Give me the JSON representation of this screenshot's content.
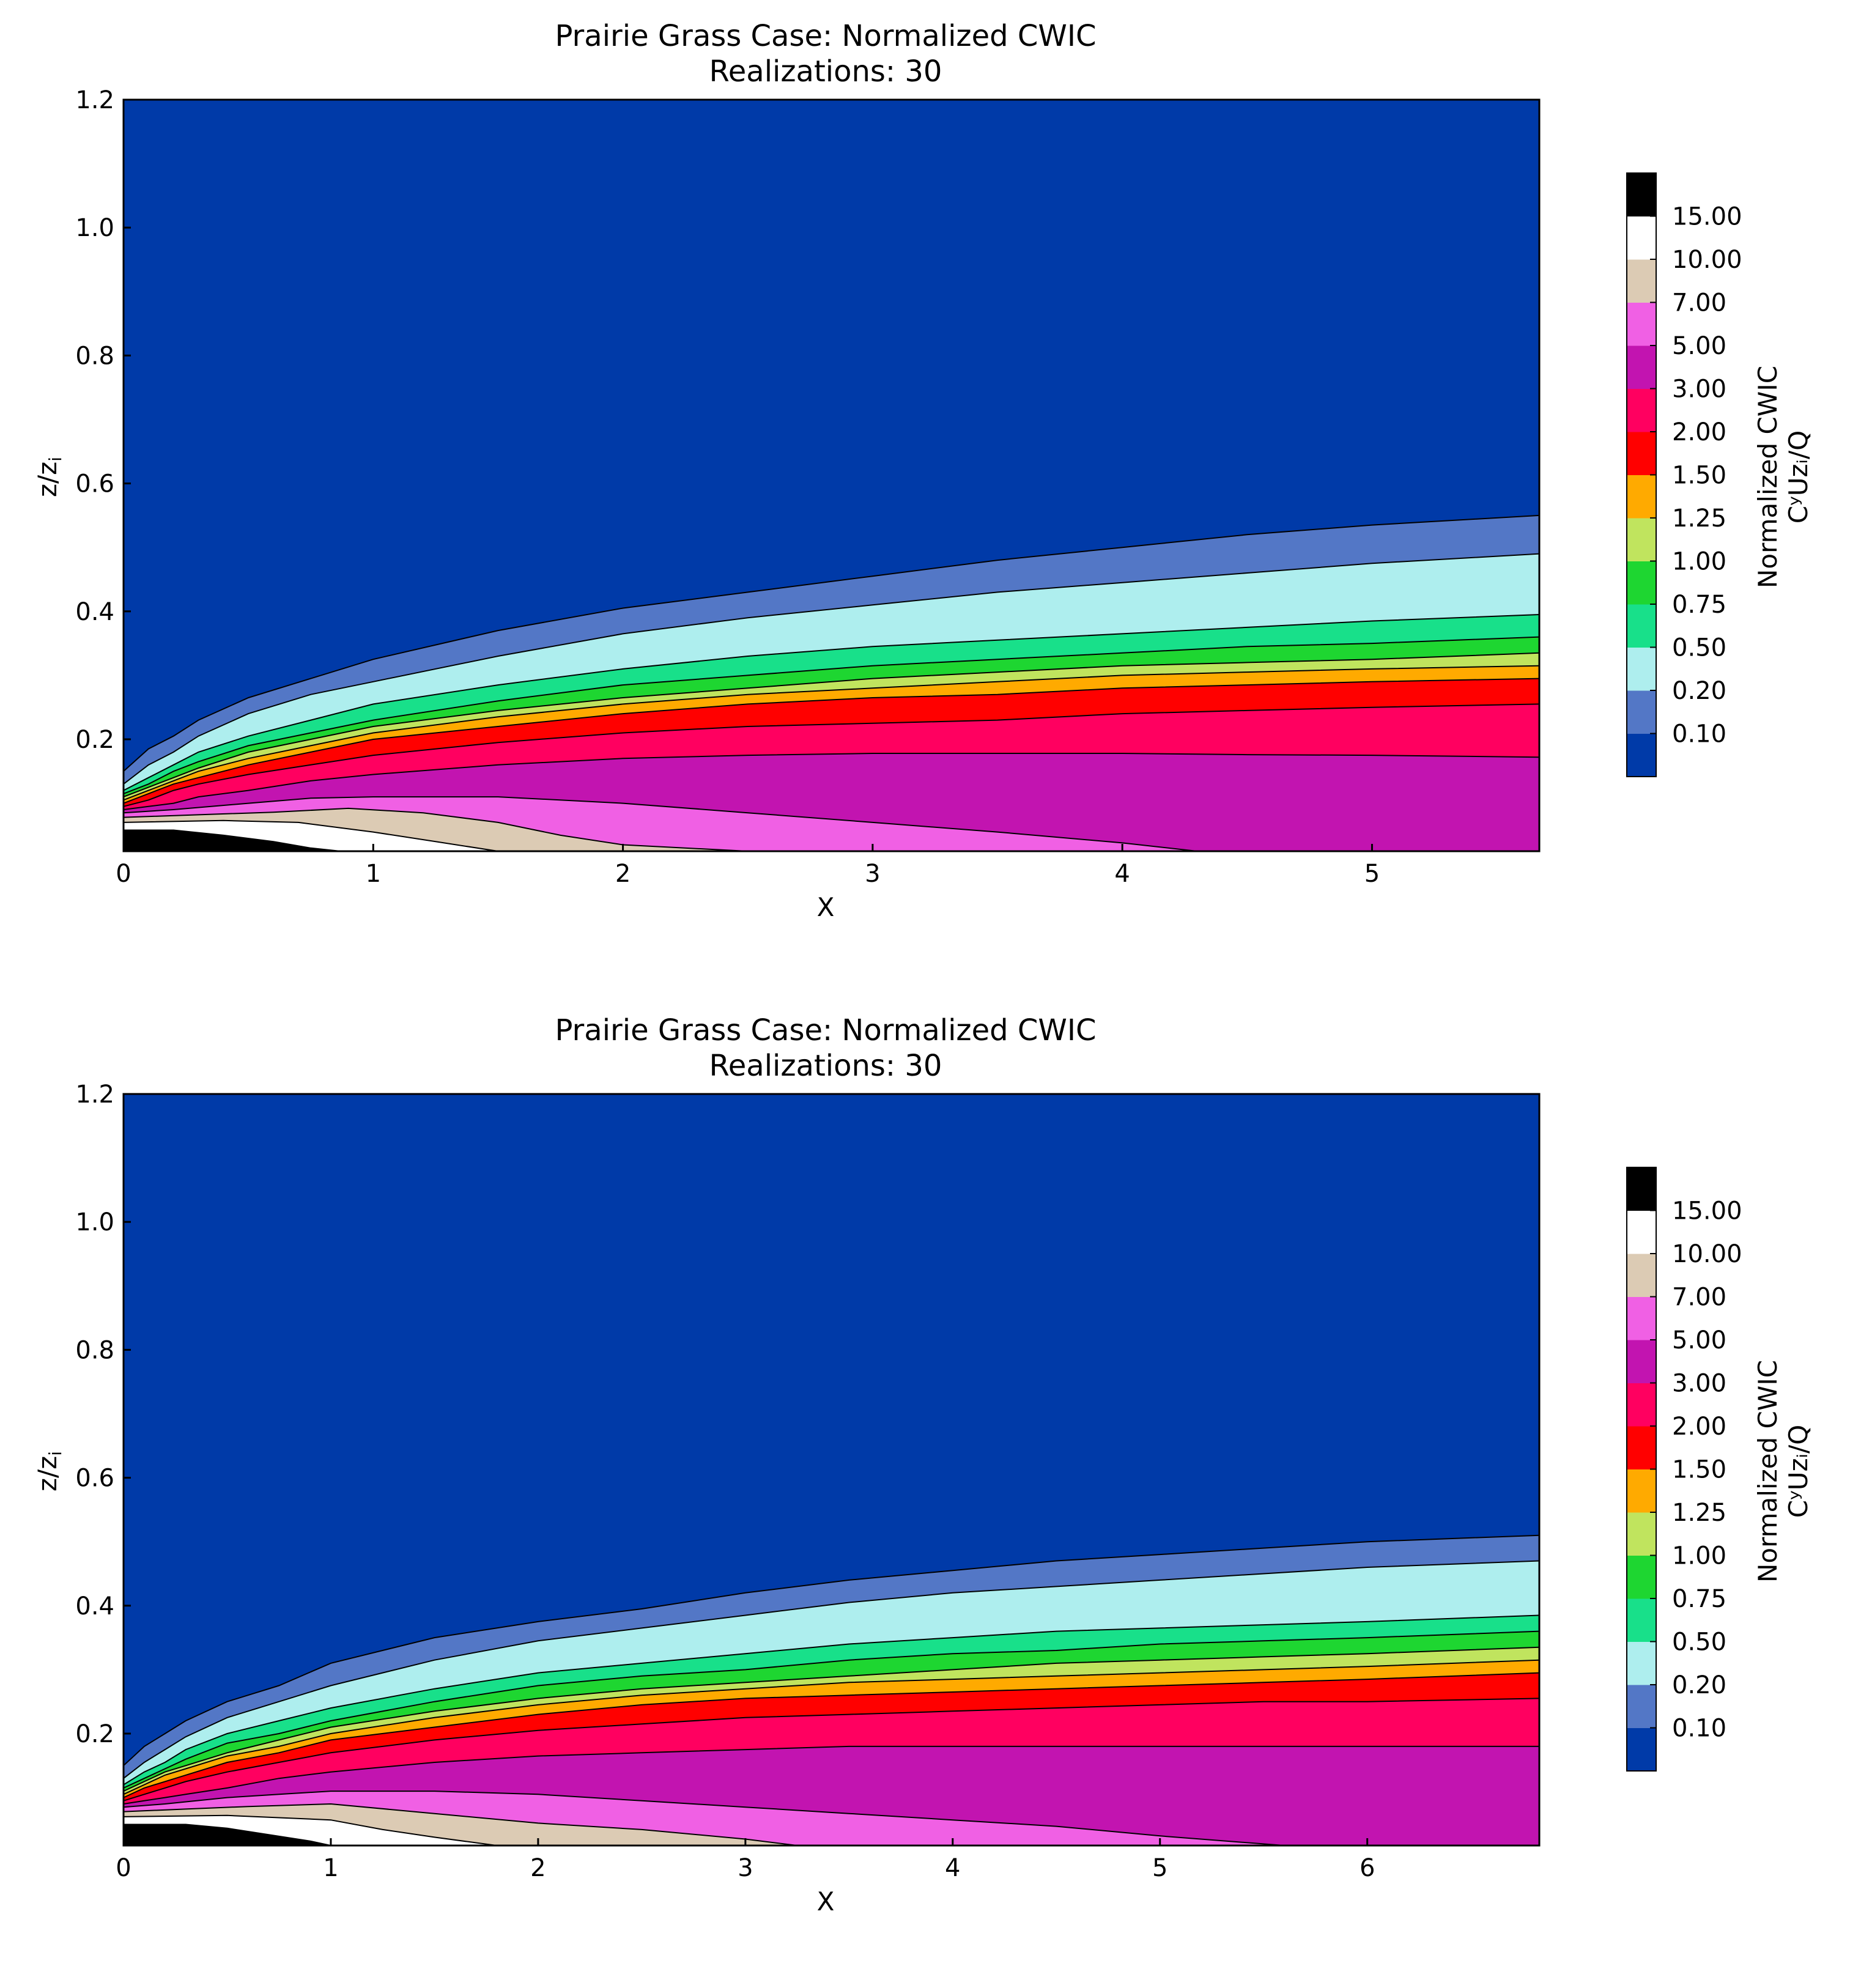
{
  "chart_data": [
    {
      "type": "contour",
      "title": "Prairie Grass Case: Normalized CWIC",
      "subtitle": "Realizations: 30",
      "xlabel": "X",
      "ylabel": "z/zᵢ",
      "ylabel_main": "z/z",
      "ylabel_sub": "i",
      "xlim": [
        0,
        5.67
      ],
      "ylim": [
        0.025,
        1.2
      ],
      "xticks": [
        0,
        1,
        2,
        3,
        4,
        5
      ],
      "yticks": [
        0.2,
        0.4,
        0.6,
        0.8,
        1.0,
        1.2
      ],
      "ytick_labels": [
        "0.2",
        "0.4",
        "0.6",
        "0.8",
        "1.0",
        "1.2"
      ],
      "colorbar": {
        "title_line1": "Normalized CWIC",
        "title_line2": "CʸUzᵢ/Q",
        "levels": [
          "0.10",
          "0.20",
          "0.50",
          "0.75",
          "1.00",
          "1.25",
          "1.50",
          "2.00",
          "3.00",
          "5.00",
          "7.00",
          "10.00",
          "15.00"
        ],
        "colors": [
          "#003aa8",
          "#5377c6",
          "#aeeeee",
          "#18e08a",
          "#1ed631",
          "#c0e45e",
          "#ffaa00",
          "#ff0000",
          "#ff0060",
          "#c214b0",
          "#f060e4",
          "#dccbb4",
          "#ffffff",
          "#000000"
        ]
      },
      "contour_boundaries": [
        {
          "level": "0.10",
          "x": [
            0,
            0.1,
            0.2,
            0.3,
            0.5,
            0.75,
            1.0,
            1.5,
            2.0,
            2.5,
            3.0,
            3.5,
            4.0,
            4.5,
            5.0,
            5.67
          ],
          "y": [
            0.15,
            0.185,
            0.205,
            0.23,
            0.265,
            0.295,
            0.325,
            0.37,
            0.405,
            0.43,
            0.455,
            0.48,
            0.5,
            0.52,
            0.535,
            0.55
          ]
        },
        {
          "level": "0.20",
          "x": [
            0,
            0.1,
            0.2,
            0.3,
            0.5,
            0.75,
            1.0,
            1.5,
            2.0,
            2.5,
            3.0,
            3.5,
            4.0,
            4.5,
            5.0,
            5.67
          ],
          "y": [
            0.13,
            0.16,
            0.18,
            0.205,
            0.24,
            0.27,
            0.29,
            0.33,
            0.365,
            0.39,
            0.41,
            0.43,
            0.445,
            0.46,
            0.475,
            0.49
          ]
        },
        {
          "level": "0.50",
          "x": [
            0,
            0.1,
            0.2,
            0.3,
            0.5,
            0.75,
            1.0,
            1.5,
            2.0,
            2.5,
            3.0,
            3.5,
            4.0,
            4.5,
            5.0,
            5.67
          ],
          "y": [
            0.12,
            0.14,
            0.16,
            0.18,
            0.205,
            0.23,
            0.255,
            0.285,
            0.31,
            0.33,
            0.345,
            0.355,
            0.365,
            0.375,
            0.385,
            0.395
          ]
        },
        {
          "level": "0.75",
          "x": [
            0,
            0.1,
            0.2,
            0.3,
            0.5,
            0.75,
            1.0,
            1.5,
            2.0,
            2.5,
            3.0,
            3.5,
            4.0,
            4.5,
            5.0,
            5.67
          ],
          "y": [
            0.115,
            0.13,
            0.15,
            0.165,
            0.19,
            0.21,
            0.23,
            0.26,
            0.285,
            0.3,
            0.315,
            0.325,
            0.335,
            0.345,
            0.35,
            0.36
          ]
        },
        {
          "level": "1.00",
          "x": [
            0,
            0.1,
            0.2,
            0.3,
            0.5,
            0.75,
            1.0,
            1.5,
            2.0,
            2.5,
            3.0,
            3.5,
            4.0,
            4.5,
            5.0,
            5.67
          ],
          "y": [
            0.11,
            0.125,
            0.14,
            0.155,
            0.18,
            0.2,
            0.22,
            0.245,
            0.265,
            0.28,
            0.295,
            0.305,
            0.315,
            0.32,
            0.325,
            0.335
          ]
        },
        {
          "level": "1.25",
          "x": [
            0,
            0.1,
            0.2,
            0.3,
            0.5,
            0.75,
            1.0,
            1.5,
            2.0,
            2.5,
            3.0,
            3.5,
            4.0,
            4.5,
            5.0,
            5.67
          ],
          "y": [
            0.105,
            0.12,
            0.135,
            0.15,
            0.17,
            0.19,
            0.21,
            0.235,
            0.255,
            0.27,
            0.28,
            0.29,
            0.3,
            0.305,
            0.31,
            0.315
          ]
        },
        {
          "level": "1.50",
          "x": [
            0,
            0.1,
            0.2,
            0.3,
            0.5,
            0.75,
            1.0,
            1.5,
            2.0,
            2.5,
            3.0,
            3.5,
            4.0,
            4.5,
            5.0,
            5.67
          ],
          "y": [
            0.1,
            0.115,
            0.13,
            0.14,
            0.16,
            0.18,
            0.2,
            0.22,
            0.24,
            0.255,
            0.265,
            0.27,
            0.28,
            0.285,
            0.29,
            0.295
          ]
        },
        {
          "level": "2.00",
          "x": [
            0,
            0.1,
            0.2,
            0.3,
            0.5,
            0.75,
            1.0,
            1.5,
            2.0,
            2.5,
            3.0,
            3.5,
            4.0,
            4.5,
            5.0,
            5.67
          ],
          "y": [
            0.095,
            0.105,
            0.12,
            0.13,
            0.145,
            0.16,
            0.175,
            0.195,
            0.21,
            0.22,
            0.225,
            0.23,
            0.24,
            0.245,
            0.25,
            0.255
          ]
        },
        {
          "level": "3.00",
          "x": [
            0,
            0.1,
            0.2,
            0.3,
            0.5,
            0.75,
            1.0,
            1.5,
            2.0,
            2.5,
            3.0,
            3.5,
            4.0,
            4.5,
            5.0,
            5.67
          ],
          "y": [
            0.09,
            0.095,
            0.1,
            0.11,
            0.12,
            0.135,
            0.145,
            0.16,
            0.17,
            0.175,
            0.178,
            0.178,
            0.178,
            0.176,
            0.175,
            0.172
          ]
        },
        {
          "level": "5.00",
          "x": [
            0,
            0.2,
            0.5,
            0.75,
            1.0,
            1.5,
            2.0,
            2.5,
            3.0,
            3.5,
            4.0,
            4.3,
            5.67
          ],
          "y": [
            0.085,
            0.09,
            0.1,
            0.108,
            0.11,
            0.11,
            0.1,
            0.085,
            0.07,
            0.055,
            0.038,
            0.025,
            0.025
          ]
        },
        {
          "level": "7.00",
          "x": [
            0,
            0.3,
            0.6,
            0.9,
            1.2,
            1.5,
            1.75,
            2.0,
            2.5,
            5.67
          ],
          "y": [
            0.078,
            0.082,
            0.086,
            0.092,
            0.085,
            0.07,
            0.05,
            0.035,
            0.025,
            0.025
          ]
        },
        {
          "level": "10.00",
          "x": [
            0,
            0.4,
            0.7,
            1.0,
            1.25,
            1.5,
            5.67
          ],
          "y": [
            0.07,
            0.073,
            0.07,
            0.055,
            0.04,
            0.025,
            0.025
          ]
        },
        {
          "level": "15.00",
          "x": [
            0,
            0.2,
            0.4,
            0.6,
            0.75,
            0.87,
            5.67
          ],
          "y": [
            0.058,
            0.058,
            0.05,
            0.04,
            0.03,
            0.025,
            0.025
          ]
        }
      ]
    },
    {
      "type": "contour",
      "title": "Prairie Grass Case: Normalized CWIC",
      "subtitle": "Realizations: 30",
      "xlabel": "X",
      "ylabel": "z/zᵢ",
      "ylabel_main": "z/z",
      "ylabel_sub": "i",
      "xlim": [
        0,
        6.83
      ],
      "ylim": [
        0.025,
        1.2
      ],
      "xticks": [
        0,
        1,
        2,
        3,
        4,
        5,
        6
      ],
      "yticks": [
        0.2,
        0.4,
        0.6,
        0.8,
        1.0,
        1.2
      ],
      "ytick_labels": [
        "0.2",
        "0.4",
        "0.6",
        "0.8",
        "1.0",
        "1.2"
      ],
      "colorbar": {
        "title_line1": "Normalized CWIC",
        "title_line2": "CʸUzᵢ/Q",
        "levels": [
          "0.10",
          "0.20",
          "0.50",
          "0.75",
          "1.00",
          "1.25",
          "1.50",
          "2.00",
          "3.00",
          "5.00",
          "7.00",
          "10.00",
          "15.00"
        ],
        "colors": [
          "#003aa8",
          "#5377c6",
          "#aeeeee",
          "#18e08a",
          "#1ed631",
          "#c0e45e",
          "#ffaa00",
          "#ff0000",
          "#ff0060",
          "#c214b0",
          "#f060e4",
          "#dccbb4",
          "#ffffff",
          "#000000"
        ]
      },
      "contour_boundaries": [
        {
          "level": "0.10",
          "x": [
            0,
            0.1,
            0.2,
            0.3,
            0.5,
            0.75,
            1.0,
            1.5,
            2.0,
            2.5,
            3.0,
            3.5,
            4.0,
            4.5,
            5.0,
            5.5,
            6.0,
            6.83
          ],
          "y": [
            0.15,
            0.18,
            0.2,
            0.22,
            0.25,
            0.275,
            0.31,
            0.35,
            0.375,
            0.395,
            0.42,
            0.44,
            0.455,
            0.47,
            0.48,
            0.49,
            0.5,
            0.51
          ]
        },
        {
          "level": "0.20",
          "x": [
            0,
            0.1,
            0.2,
            0.3,
            0.5,
            0.75,
            1.0,
            1.5,
            2.0,
            2.5,
            3.0,
            3.5,
            4.0,
            4.5,
            5.0,
            5.5,
            6.0,
            6.83
          ],
          "y": [
            0.13,
            0.155,
            0.175,
            0.195,
            0.225,
            0.25,
            0.275,
            0.315,
            0.345,
            0.365,
            0.385,
            0.405,
            0.42,
            0.43,
            0.44,
            0.45,
            0.46,
            0.47
          ]
        },
        {
          "level": "0.50",
          "x": [
            0,
            0.1,
            0.2,
            0.3,
            0.5,
            0.75,
            1.0,
            1.5,
            2.0,
            2.5,
            3.0,
            3.5,
            4.0,
            4.5,
            5.0,
            5.5,
            6.0,
            6.83
          ],
          "y": [
            0.12,
            0.14,
            0.155,
            0.175,
            0.2,
            0.22,
            0.24,
            0.27,
            0.295,
            0.31,
            0.325,
            0.34,
            0.35,
            0.36,
            0.365,
            0.37,
            0.375,
            0.385
          ]
        },
        {
          "level": "0.75",
          "x": [
            0,
            0.1,
            0.2,
            0.3,
            0.5,
            0.75,
            1.0,
            1.5,
            2.0,
            2.5,
            3.0,
            3.5,
            4.0,
            4.5,
            5.0,
            5.5,
            6.0,
            6.83
          ],
          "y": [
            0.115,
            0.13,
            0.145,
            0.16,
            0.185,
            0.2,
            0.22,
            0.25,
            0.275,
            0.29,
            0.3,
            0.315,
            0.325,
            0.33,
            0.34,
            0.345,
            0.35,
            0.36
          ]
        },
        {
          "level": "1.00",
          "x": [
            0,
            0.1,
            0.2,
            0.3,
            0.5,
            0.75,
            1.0,
            1.5,
            2.0,
            2.5,
            3.0,
            3.5,
            4.0,
            4.5,
            5.0,
            5.5,
            6.0,
            6.83
          ],
          "y": [
            0.11,
            0.125,
            0.14,
            0.15,
            0.17,
            0.19,
            0.21,
            0.235,
            0.255,
            0.27,
            0.28,
            0.29,
            0.3,
            0.31,
            0.315,
            0.32,
            0.325,
            0.335
          ]
        },
        {
          "level": "1.25",
          "x": [
            0,
            0.1,
            0.2,
            0.3,
            0.5,
            0.75,
            1.0,
            1.5,
            2.0,
            2.5,
            3.0,
            3.5,
            4.0,
            4.5,
            5.0,
            5.5,
            6.0,
            6.83
          ],
          "y": [
            0.105,
            0.12,
            0.135,
            0.145,
            0.165,
            0.18,
            0.2,
            0.225,
            0.245,
            0.26,
            0.27,
            0.28,
            0.285,
            0.29,
            0.295,
            0.3,
            0.305,
            0.315
          ]
        },
        {
          "level": "1.50",
          "x": [
            0,
            0.1,
            0.2,
            0.3,
            0.5,
            0.75,
            1.0,
            1.5,
            2.0,
            2.5,
            3.0,
            3.5,
            4.0,
            4.5,
            5.0,
            5.5,
            6.0,
            6.83
          ],
          "y": [
            0.1,
            0.115,
            0.125,
            0.135,
            0.155,
            0.17,
            0.19,
            0.21,
            0.23,
            0.245,
            0.255,
            0.26,
            0.265,
            0.27,
            0.275,
            0.28,
            0.285,
            0.295
          ]
        },
        {
          "level": "2.00",
          "x": [
            0,
            0.1,
            0.2,
            0.3,
            0.5,
            0.75,
            1.0,
            1.5,
            2.0,
            2.5,
            3.0,
            3.5,
            4.0,
            4.5,
            5.0,
            5.5,
            6.0,
            6.83
          ],
          "y": [
            0.095,
            0.105,
            0.115,
            0.125,
            0.14,
            0.155,
            0.17,
            0.19,
            0.205,
            0.215,
            0.225,
            0.23,
            0.235,
            0.24,
            0.245,
            0.25,
            0.25,
            0.255
          ]
        },
        {
          "level": "3.00",
          "x": [
            0,
            0.1,
            0.2,
            0.3,
            0.5,
            0.75,
            1.0,
            1.5,
            2.0,
            2.5,
            3.0,
            3.5,
            4.0,
            4.5,
            5.0,
            5.5,
            6.0,
            6.83
          ],
          "y": [
            0.09,
            0.095,
            0.1,
            0.105,
            0.115,
            0.13,
            0.14,
            0.155,
            0.165,
            0.17,
            0.175,
            0.18,
            0.18,
            0.18,
            0.18,
            0.18,
            0.18,
            0.18
          ]
        },
        {
          "level": "5.00",
          "x": [
            0,
            0.2,
            0.5,
            0.75,
            1.0,
            1.5,
            2.0,
            2.5,
            3.0,
            3.5,
            4.0,
            4.5,
            5.0,
            5.6,
            6.83
          ],
          "y": [
            0.085,
            0.09,
            0.1,
            0.105,
            0.11,
            0.11,
            0.105,
            0.095,
            0.085,
            0.075,
            0.065,
            0.055,
            0.04,
            0.025,
            0.025
          ]
        },
        {
          "level": "7.00",
          "x": [
            0,
            0.3,
            0.6,
            1.0,
            1.5,
            2.0,
            2.5,
            3.0,
            3.25,
            6.83
          ],
          "y": [
            0.078,
            0.082,
            0.086,
            0.09,
            0.075,
            0.06,
            0.05,
            0.035,
            0.025,
            0.025
          ]
        },
        {
          "level": "10.00",
          "x": [
            0,
            0.5,
            1.0,
            1.25,
            1.5,
            1.8,
            6.83
          ],
          "y": [
            0.07,
            0.072,
            0.065,
            0.05,
            0.038,
            0.025,
            0.025
          ]
        },
        {
          "level": "15.00",
          "x": [
            0,
            0.3,
            0.5,
            0.7,
            0.9,
            1.0,
            6.83
          ],
          "y": [
            0.058,
            0.058,
            0.052,
            0.042,
            0.032,
            0.025,
            0.025
          ]
        }
      ]
    }
  ]
}
